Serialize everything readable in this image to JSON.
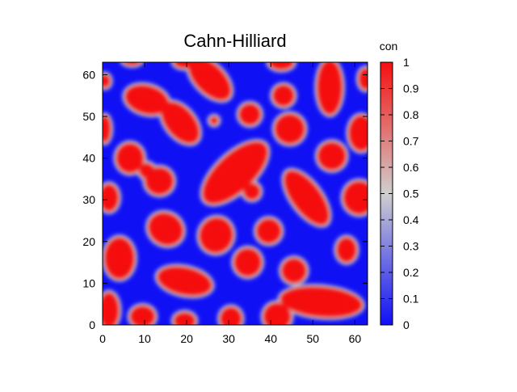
{
  "chart_data": {
    "type": "heatmap",
    "title": "Cahn-Hilliard",
    "xlabel": "",
    "ylabel": "",
    "colorbar_label": "con",
    "xlim": [
      0,
      63
    ],
    "ylim": [
      0,
      63
    ],
    "x_ticks": [
      "0",
      "10",
      "20",
      "30",
      "40",
      "50",
      "60"
    ],
    "y_ticks": [
      "0",
      "10",
      "20",
      "30",
      "40",
      "50",
      "60"
    ],
    "colorbar_range": [
      0,
      1
    ],
    "colorbar_ticks": [
      "0",
      "0.1",
      "0.2",
      "0.3",
      "0.4",
      "0.5",
      "0.6",
      "0.7",
      "0.8",
      "0.9",
      "1"
    ],
    "colormap": {
      "low": "#1010f5",
      "mid": "#cfcfcf",
      "high": "#f51010"
    },
    "grid": false,
    "field_values": "concentration 0 (blue) to 1 (red)",
    "domains": [
      {
        "shape": "ellipse",
        "cx": 52,
        "cy": 5.5,
        "rx": 10,
        "ry": 3.8,
        "rot": -5
      },
      {
        "shape": "ellipse",
        "cx": 1.5,
        "cy": 3.5,
        "rx": 2.6,
        "ry": 4.5,
        "rot": 0
      },
      {
        "shape": "ellipse",
        "cx": 9.5,
        "cy": 2,
        "rx": 3.2,
        "ry": 2.8,
        "rot": 0
      },
      {
        "shape": "ellipse",
        "cx": 19.5,
        "cy": 1,
        "rx": 2.8,
        "ry": 2.2,
        "rot": 0
      },
      {
        "shape": "ellipse",
        "cx": 30.5,
        "cy": 1.5,
        "rx": 2.8,
        "ry": 3,
        "rot": 0
      },
      {
        "shape": "ellipse",
        "cx": 41.5,
        "cy": 2,
        "rx": 3.5,
        "ry": 3.5,
        "rot": 0
      },
      {
        "shape": "ellipse",
        "cx": 19.5,
        "cy": 10.5,
        "rx": 6.8,
        "ry": 3.5,
        "rot": -12
      },
      {
        "shape": "ellipse",
        "cx": 4,
        "cy": 16,
        "rx": 3.8,
        "ry": 5.2,
        "rot": 0
      },
      {
        "shape": "ellipse",
        "cx": 34.5,
        "cy": 15,
        "rx": 3.5,
        "ry": 3.6,
        "rot": 0
      },
      {
        "shape": "ellipse",
        "cx": 45.5,
        "cy": 13,
        "rx": 3.2,
        "ry": 3.2,
        "rot": 0
      },
      {
        "shape": "ellipse",
        "cx": 58,
        "cy": 18,
        "rx": 2.6,
        "ry": 3.2,
        "rot": 0
      },
      {
        "shape": "ellipse",
        "cx": 15,
        "cy": 23,
        "rx": 4.5,
        "ry": 4,
        "rot": -30
      },
      {
        "shape": "ellipse",
        "cx": 27,
        "cy": 21.5,
        "rx": 4.2,
        "ry": 4.5,
        "rot": -20
      },
      {
        "shape": "ellipse",
        "cx": 39.5,
        "cy": 22.5,
        "rx": 3.2,
        "ry": 3.2,
        "rot": 0
      },
      {
        "shape": "ellipse",
        "cx": 48.5,
        "cy": 30.5,
        "rx": 3.6,
        "ry": 8,
        "rot": 37
      },
      {
        "shape": "ellipse",
        "cx": 1.5,
        "cy": 30.5,
        "rx": 2.5,
        "ry": 3.5,
        "rot": 0
      },
      {
        "shape": "ellipse",
        "cx": 61,
        "cy": 30.5,
        "rx": 4,
        "ry": 4.2,
        "rot": 0
      },
      {
        "shape": "ellipse",
        "cx": 35.5,
        "cy": 32,
        "rx": 2.2,
        "ry": 2.2,
        "rot": 0
      },
      {
        "shape": "ellipse",
        "cx": 31.5,
        "cy": 36.5,
        "rx": 10,
        "ry": 4.6,
        "rot": 43
      },
      {
        "shape": "ellipse",
        "cx": 6.5,
        "cy": 40,
        "rx": 3.5,
        "ry": 3.8,
        "rot": 0
      },
      {
        "shape": "ellipse",
        "cx": 13.5,
        "cy": 34.5,
        "rx": 3.6,
        "ry": 3.5,
        "rot": 0
      },
      {
        "shape": "ellipse",
        "cx": 10.5,
        "cy": 37,
        "rx": 2,
        "ry": 2,
        "rot": 0
      },
      {
        "shape": "ellipse",
        "cx": 54.5,
        "cy": 40.5,
        "rx": 3.6,
        "ry": 3.6,
        "rot": 0
      },
      {
        "shape": "ellipse",
        "cx": 44.5,
        "cy": 47,
        "rx": 3.8,
        "ry": 3.8,
        "rot": 0
      },
      {
        "shape": "ellipse",
        "cx": 61.5,
        "cy": 46,
        "rx": 3.2,
        "ry": 4.5,
        "rot": 0
      },
      {
        "shape": "ellipse",
        "cx": 0.5,
        "cy": 47,
        "rx": 1.6,
        "ry": 3.5,
        "rot": 0
      },
      {
        "shape": "ellipse",
        "cx": 10.5,
        "cy": 54,
        "rx": 5.5,
        "ry": 3.6,
        "rot": -15
      },
      {
        "shape": "ellipse",
        "cx": 18.5,
        "cy": 48.5,
        "rx": 6,
        "ry": 3.6,
        "rot": -50
      },
      {
        "shape": "ellipse",
        "cx": 26.5,
        "cy": 49,
        "rx": 1.2,
        "ry": 1.2,
        "rot": 0
      },
      {
        "shape": "ellipse",
        "cx": 35,
        "cy": 50.5,
        "rx": 2.8,
        "ry": 2.8,
        "rot": 0
      },
      {
        "shape": "ellipse",
        "cx": 43,
        "cy": 55,
        "rx": 2.8,
        "ry": 2.8,
        "rot": 0
      },
      {
        "shape": "ellipse",
        "cx": 54,
        "cy": 57,
        "rx": 3.2,
        "ry": 6.8,
        "rot": 0
      },
      {
        "shape": "ellipse",
        "cx": 62.5,
        "cy": 59,
        "rx": 1.8,
        "ry": 2.8,
        "rot": 0
      },
      {
        "shape": "ellipse",
        "cx": 25.5,
        "cy": 59,
        "rx": 6.5,
        "ry": 3.6,
        "rot": -45
      },
      {
        "shape": "ellipse",
        "cx": 0.5,
        "cy": 58.5,
        "rx": 1.5,
        "ry": 1.8,
        "rot": 0
      },
      {
        "shape": "ellipse",
        "cx": 42.5,
        "cy": 63,
        "rx": 3.2,
        "ry": 2,
        "rot": 0
      },
      {
        "shape": "ellipse",
        "cx": 19.5,
        "cy": 63,
        "rx": 2.8,
        "ry": 1.6,
        "rot": 0
      },
      {
        "shape": "ellipse",
        "cx": 7,
        "cy": 63.5,
        "rx": 2.5,
        "ry": 1.4,
        "rot": 0
      }
    ]
  }
}
